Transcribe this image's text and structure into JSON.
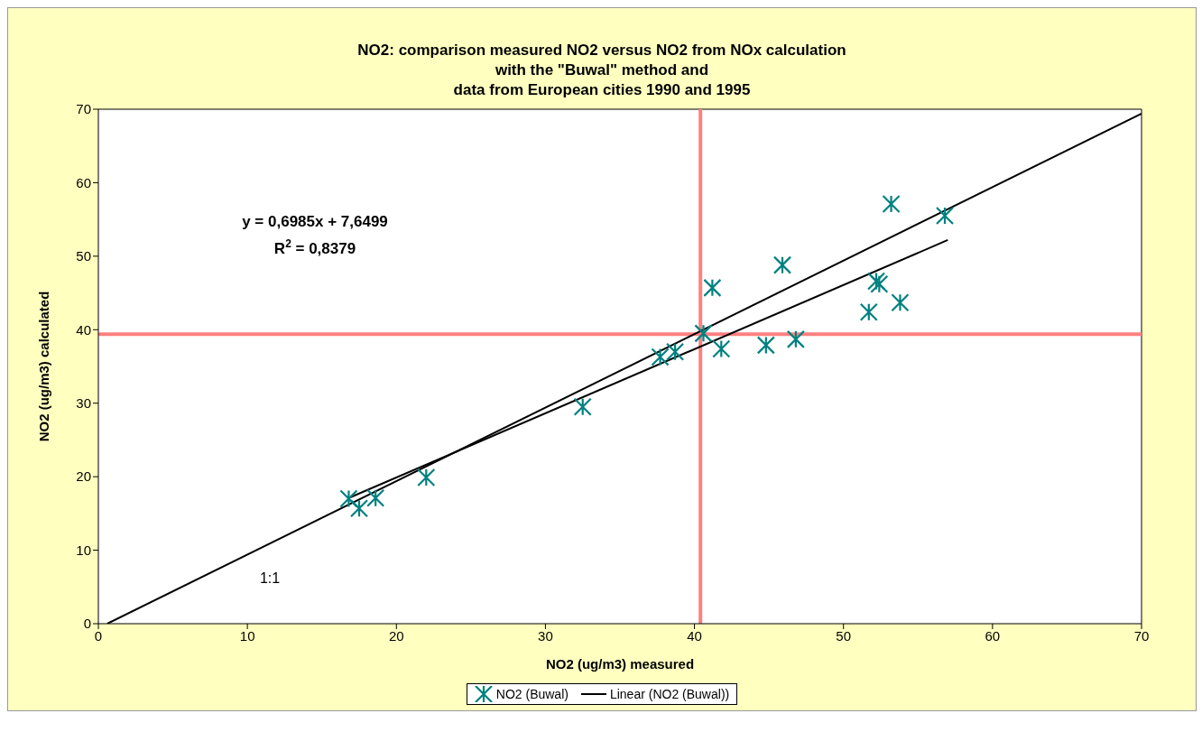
{
  "chart_data": {
    "type": "scatter",
    "title": "NO2: comparison measured NO2 versus NO2 from NOx calculation\nwith the \"Buwal\" method and\ndata from European cities 1990 and 1995",
    "xlabel": "NO2 (ug/m3) measured",
    "ylabel": "NO2 (ug/m3) calculated",
    "xlim": [
      0,
      70
    ],
    "ylim": [
      0,
      70
    ],
    "xticks": [
      0,
      10,
      20,
      30,
      40,
      50,
      60,
      70
    ],
    "yticks": [
      0,
      10,
      20,
      30,
      40,
      50,
      60,
      70
    ],
    "grid": false,
    "legend": "bottom",
    "series": [
      {
        "name": "NO2 (Buwal)",
        "marker": "cross",
        "color": "#008080",
        "x": [
          16.8,
          17.5,
          18.6,
          22.0,
          32.5,
          37.7,
          38.7,
          40.6,
          41.2,
          41.8,
          44.8,
          45.9,
          46.8,
          51.7,
          52.2,
          52.4,
          53.8,
          53.2,
          56.8
        ],
        "values": [
          17.0,
          15.7,
          17.1,
          19.9,
          29.5,
          36.3,
          37.0,
          39.5,
          45.7,
          37.4,
          37.9,
          48.8,
          38.7,
          42.4,
          46.6,
          46.2,
          43.7,
          57.1,
          55.5
        ]
      },
      {
        "name": "Linear (NO2 (Buwal))",
        "type": "line",
        "color": "#000000",
        "x": [
          16.8,
          57.0
        ],
        "values": [
          17.1,
          52.2
        ]
      },
      {
        "type": "line",
        "color": "#000000",
        "x": [
          0.6,
          70
        ],
        "values": [
          0,
          69.4
        ]
      }
    ],
    "ref_lines": [
      {
        "axis": "x",
        "value": 40.4,
        "color": "#ff8080"
      },
      {
        "axis": "y",
        "value": 39.4,
        "color": "#ff8080"
      }
    ],
    "annotations": [
      "y = 0,6985x + 7,6499",
      "R$^{2}$ = 0,8379",
      "1:1"
    ]
  }
}
